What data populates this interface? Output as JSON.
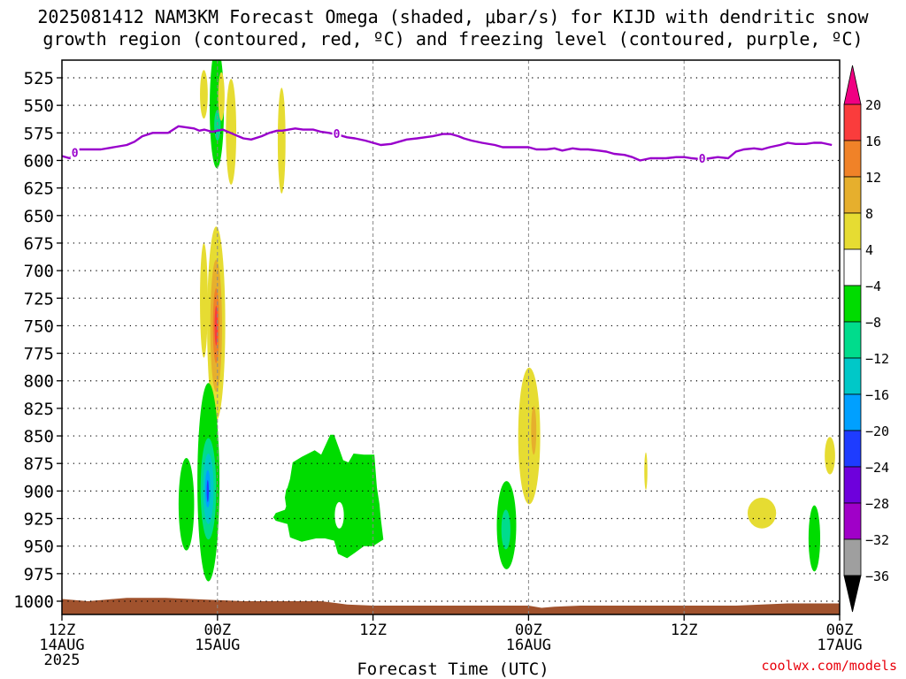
{
  "title": {
    "line1": "2025081412 NAM3KM Forecast Omega (shaded, μbar/s) for KIJD with dendritic snow",
    "line2": "growth region (contoured, red, ºC) and freezing level (contoured, purple, ºC)"
  },
  "credit": "coolwx.com/models",
  "chart_data": {
    "type": "heatmap",
    "xlabel": "Forecast Time (UTC)",
    "xlim": [
      0,
      60
    ],
    "ylim": [
      1015,
      510
    ],
    "ylabel": "",
    "grid": true,
    "y_ticks": [
      525,
      550,
      575,
      600,
      625,
      650,
      675,
      700,
      725,
      750,
      775,
      800,
      825,
      850,
      875,
      900,
      925,
      950,
      975,
      1000
    ],
    "x_ticks": [
      {
        "h": 0,
        "lines": [
          "12Z",
          "14AUG",
          "2025"
        ]
      },
      {
        "h": 12,
        "lines": [
          "00Z",
          "15AUG"
        ]
      },
      {
        "h": 24,
        "lines": [
          "12Z"
        ]
      },
      {
        "h": 36,
        "lines": [
          "00Z",
          "16AUG"
        ]
      },
      {
        "h": 48,
        "lines": [
          "12Z"
        ]
      },
      {
        "h": 60,
        "lines": [
          "00Z",
          "17AUG"
        ]
      }
    ],
    "colorbar": {
      "levels": [
        -36,
        -32,
        -28,
        -24,
        -20,
        -16,
        -12,
        -8,
        -4,
        4,
        8,
        12,
        16,
        20
      ],
      "colors": [
        "#000000",
        "#9f9f9f",
        "#a000c8",
        "#6e00dc",
        "#1e3cff",
        "#00a0ff",
        "#00c8c8",
        "#00dc8c",
        "#00dc00",
        "#ffffff",
        "#e6dc32",
        "#e6af2d",
        "#f08228",
        "#fa3c3c",
        "#f00082"
      ]
    },
    "freezing_level": {
      "label": "0",
      "color": "#9900cc",
      "x": [
        0,
        0.6,
        1.3,
        2,
        2.6,
        3,
        4,
        5,
        5.6,
        6.2,
        7,
        7.6,
        8.2,
        9,
        9.6,
        10.2,
        10.6,
        11,
        11.6,
        12,
        12.4,
        13,
        13.4,
        14,
        14.6,
        15.4,
        16,
        16.6,
        17,
        18,
        18.6,
        19.4,
        20,
        20.6,
        21.4,
        22,
        22.6,
        23.4,
        24,
        24.6,
        25.4,
        26,
        26.6,
        27.4,
        28,
        28.6,
        29.4,
        30,
        30.6,
        31,
        31.6,
        32.4,
        33.4,
        34,
        34.6,
        35.4,
        36,
        36.6,
        37.4,
        38,
        38.6,
        39.4,
        40,
        40.6,
        41.4,
        42,
        42.6,
        43.4,
        44,
        44.6,
        45.4,
        46,
        46.6,
        47.4,
        48,
        48.6,
        49.4,
        50,
        50.6,
        51.4,
        52,
        52.6,
        53.4,
        54,
        54.6,
        55.4,
        56,
        56.6,
        57.4,
        58,
        58.6,
        59.4,
        60
      ],
      "y": [
        596,
        598,
        590,
        590,
        590,
        590,
        588,
        586,
        583,
        578,
        575,
        575,
        575,
        569,
        570,
        571,
        573,
        572,
        574,
        573,
        572,
        575,
        577,
        580,
        581,
        578,
        575,
        573,
        573,
        571,
        572,
        572,
        574,
        575,
        577,
        579,
        580,
        582,
        584,
        586,
        585,
        583,
        581,
        580,
        579,
        578,
        576,
        576,
        578,
        580,
        582,
        584,
        586,
        588,
        588,
        588,
        588,
        590,
        590,
        589,
        591,
        589,
        590,
        590,
        591,
        592,
        594,
        595,
        597,
        600,
        598,
        598,
        598,
        597,
        597,
        598,
        599,
        598,
        597,
        598,
        592,
        590,
        589,
        590,
        588,
        586,
        584,
        585,
        585,
        584,
        584,
        586
      ],
      "contour_labels_at": [
        1,
        21.2,
        49.4
      ]
    },
    "omega_features": [
      {
        "x": 11.95,
        "y": 552,
        "rx": 0.55,
        "ry": 55,
        "value": -6
      },
      {
        "x": 12.0,
        "y": 568,
        "rx": 0.25,
        "ry": 14,
        "value": -10
      },
      {
        "x": 10.95,
        "y": 540,
        "rx": 0.3,
        "ry": 22,
        "value": 5
      },
      {
        "x": 12.3,
        "y": 542,
        "rx": 0.25,
        "ry": 22,
        "value": 5
      },
      {
        "x": 13.05,
        "y": 574,
        "rx": 0.4,
        "ry": 48,
        "value": 5
      },
      {
        "x": 16.95,
        "y": 582,
        "rx": 0.3,
        "ry": 48,
        "value": 5
      },
      {
        "x": 11.9,
        "y": 748,
        "rx": 0.7,
        "ry": 88,
        "value": 6
      },
      {
        "x": 11.9,
        "y": 750,
        "rx": 0.45,
        "ry": 60,
        "value": 10
      },
      {
        "x": 11.9,
        "y": 750,
        "rx": 0.25,
        "ry": 34,
        "value": 14
      },
      {
        "x": 11.9,
        "y": 750,
        "rx": 0.12,
        "ry": 18,
        "value": 18
      },
      {
        "x": 10.95,
        "y": 727,
        "rx": 0.3,
        "ry": 52,
        "value": 5
      },
      {
        "x": 11.3,
        "y": 892,
        "rx": 0.85,
        "ry": 90,
        "value": -6
      },
      {
        "x": 11.3,
        "y": 898,
        "rx": 0.6,
        "ry": 46,
        "value": -10
      },
      {
        "x": 11.3,
        "y": 898,
        "rx": 0.4,
        "ry": 32,
        "value": -14
      },
      {
        "x": 11.25,
        "y": 898,
        "rx": 0.2,
        "ry": 17,
        "value": -18
      },
      {
        "x": 11.25,
        "y": 900,
        "rx": 0.08,
        "ry": 10,
        "value": -22
      },
      {
        "x": 9.6,
        "y": 912,
        "rx": 0.6,
        "ry": 42,
        "value": -6
      },
      {
        "x": 36.05,
        "y": 850,
        "rx": 0.85,
        "ry": 62,
        "value": 5
      },
      {
        "x": 36.4,
        "y": 845,
        "rx": 0.2,
        "ry": 22,
        "value": 9
      },
      {
        "x": 34.3,
        "y": 931,
        "rx": 0.75,
        "ry": 40,
        "value": -6
      },
      {
        "x": 34.25,
        "y": 935,
        "rx": 0.35,
        "ry": 18,
        "value": -10
      },
      {
        "x": 45.05,
        "y": 882,
        "rx": 0.12,
        "ry": 17,
        "value": 5
      },
      {
        "x": 54.0,
        "y": 920,
        "rx": 1.1,
        "ry": 14,
        "value": 5
      },
      {
        "x": 59.25,
        "y": 868,
        "rx": 0.4,
        "ry": 17,
        "value": 5
      },
      {
        "x": 58.05,
        "y": 943,
        "rx": 0.45,
        "ry": 30,
        "value": -6
      }
    ],
    "omega_region_a": {
      "value": -6,
      "x": [
        17.4,
        17.6,
        17.8,
        18.5,
        19.5,
        20,
        20.7,
        21.0,
        21.4,
        21.7,
        22.1,
        22.5,
        23.3,
        24.1,
        24.3,
        24.5,
        24.6,
        24.8,
        24.0,
        23.3,
        22.6,
        22.0,
        21.3,
        21.0,
        20.3,
        19.6,
        18.5,
        17.8,
        17.6,
        17.4,
        16.5,
        16.3,
        16.5,
        17.2,
        17.3,
        17.2,
        17.3
      ],
      "y": [
        897,
        889,
        874,
        869,
        863,
        867,
        849,
        849,
        862,
        872,
        874,
        866,
        867,
        867,
        897,
        912,
        925,
        944,
        950,
        950,
        956,
        961,
        957,
        945,
        943,
        943,
        946,
        943,
        942,
        930,
        927,
        924,
        920,
        917,
        914,
        906,
        899
      ]
    },
    "omega_region_a_hole": {
      "value": 2,
      "x": 21.4,
      "y": 922,
      "rx": 0.35,
      "ry": 12
    },
    "surface": {
      "color": "#a0522d",
      "x": [
        0,
        1,
        2,
        3,
        4,
        5,
        6,
        8,
        10,
        12,
        14,
        16,
        18,
        20,
        22,
        24,
        28,
        32,
        36,
        37,
        38,
        40,
        44,
        48,
        50,
        52,
        54,
        56,
        58,
        60
      ],
      "y": [
        998,
        999,
        1000,
        999,
        998,
        997,
        997,
        997,
        998,
        999,
        1000,
        1000,
        1000,
        1000,
        1003,
        1004,
        1004,
        1004,
        1004,
        1006,
        1005,
        1004,
        1004,
        1004,
        1004,
        1004,
        1003,
        1002,
        1002,
        1002
      ]
    }
  }
}
